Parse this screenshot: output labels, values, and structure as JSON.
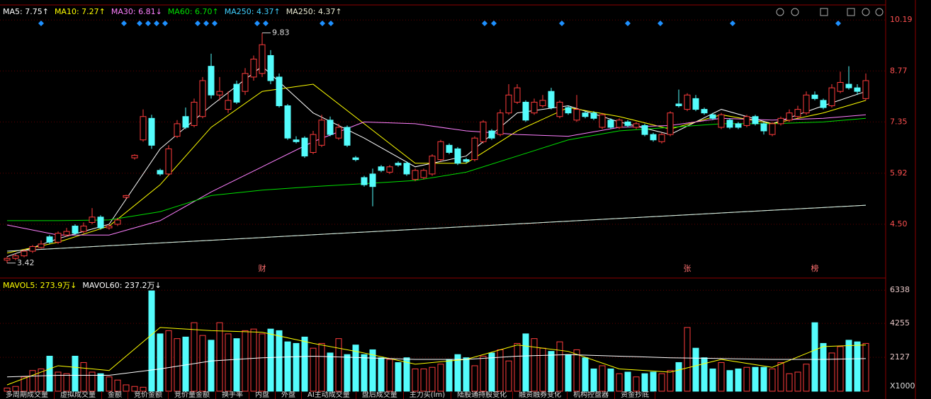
{
  "chart_data": [
    {
      "type": "candlestick",
      "open": [
        3.5,
        3.55,
        3.62,
        3.75,
        3.85,
        4.15,
        4.0,
        4.2,
        4.45,
        4.3,
        4.55,
        4.7,
        4.4,
        4.5,
        5.25,
        6.35,
        6.85,
        7.45,
        6.0,
        5.9,
        6.95,
        7.5,
        7.25,
        7.5,
        8.9,
        8.1,
        7.7,
        8.4,
        8.2,
        8.6,
        8.7,
        9.2,
        8.6,
        7.8,
        6.85,
        6.9,
        6.5,
        6.7,
        7.4,
        6.9,
        7.2,
        6.35,
        5.8,
        5.9,
        6.1,
        5.95,
        6.2,
        6.2,
        5.75,
        5.8,
        5.9,
        6.3,
        6.7,
        6.6,
        6.3,
        6.3,
        6.8,
        7.1,
        7.0,
        7.6,
        7.9,
        7.9,
        7.6,
        7.8,
        8.2,
        7.5,
        7.75,
        7.4,
        7.6,
        7.6,
        7.2,
        7.4,
        7.2,
        7.35,
        7.2,
        7.25,
        7.0,
        6.8,
        7.0,
        7.85,
        7.7,
        8.0,
        7.7,
        7.55,
        7.2,
        7.4,
        7.3,
        7.25,
        7.5,
        7.3,
        7.0,
        7.3,
        7.4,
        7.5,
        7.6,
        8.1,
        7.95,
        7.8,
        8.2,
        8.4,
        8.3,
        8.0
      ],
      "close": [
        3.55,
        3.62,
        3.75,
        3.88,
        3.95,
        4.0,
        4.25,
        4.3,
        4.25,
        4.45,
        4.7,
        4.4,
        4.45,
        4.62,
        5.3,
        6.42,
        7.5,
        6.7,
        5.9,
        6.6,
        7.3,
        7.2,
        7.9,
        8.5,
        8.1,
        8.2,
        7.95,
        7.9,
        8.7,
        9.1,
        9.5,
        8.5,
        7.8,
        6.9,
        6.8,
        6.4,
        7.0,
        7.4,
        7.0,
        7.2,
        6.7,
        6.3,
        5.6,
        5.55,
        6.0,
        6.1,
        6.15,
        5.9,
        6.0,
        6.0,
        6.4,
        6.8,
        6.5,
        6.2,
        6.25,
        6.9,
        7.35,
        6.9,
        7.6,
        8.1,
        8.3,
        7.4,
        7.9,
        7.95,
        7.75,
        7.9,
        7.6,
        7.7,
        7.5,
        7.45,
        7.55,
        7.2,
        7.4,
        7.25,
        7.3,
        7.0,
        6.85,
        7.0,
        7.6,
        7.8,
        8.1,
        7.7,
        7.6,
        7.45,
        7.55,
        7.2,
        7.2,
        7.5,
        7.3,
        7.1,
        7.3,
        7.45,
        7.6,
        7.7,
        8.1,
        8.0,
        7.75,
        8.3,
        8.45,
        8.3,
        8.2,
        8.5
      ],
      "high": [
        3.6,
        3.68,
        3.8,
        3.92,
        4.05,
        4.2,
        4.3,
        4.4,
        4.5,
        4.55,
        4.95,
        4.75,
        4.5,
        4.68,
        5.32,
        6.45,
        7.7,
        7.55,
        6.05,
        6.7,
        7.4,
        7.75,
        8.0,
        8.6,
        9.25,
        8.6,
        8.2,
        8.5,
        8.85,
        9.2,
        9.83,
        9.35,
        8.7,
        7.85,
        6.95,
        6.95,
        7.1,
        7.55,
        7.5,
        7.3,
        7.25,
        6.4,
        5.85,
        6.05,
        6.15,
        6.15,
        6.25,
        6.25,
        6.05,
        6.05,
        6.45,
        6.85,
        6.75,
        6.65,
        6.35,
        6.95,
        7.4,
        7.15,
        7.7,
        8.4,
        8.4,
        7.95,
        8.0,
        8.1,
        8.3,
        7.95,
        7.8,
        8.1,
        7.65,
        7.65,
        7.6,
        7.45,
        7.45,
        7.4,
        7.35,
        7.3,
        7.05,
        7.05,
        7.65,
        8.25,
        8.15,
        8.1,
        7.75,
        7.6,
        7.6,
        7.45,
        7.35,
        7.55,
        7.55,
        7.35,
        7.35,
        7.5,
        7.7,
        7.8,
        8.2,
        8.2,
        8.0,
        8.4,
        8.75,
        8.9,
        8.4,
        8.7
      ],
      "low": [
        3.42,
        3.5,
        3.58,
        3.7,
        3.82,
        3.95,
        3.95,
        4.15,
        4.2,
        4.25,
        4.5,
        4.35,
        4.35,
        4.45,
        5.2,
        6.3,
        6.8,
        6.6,
        5.85,
        5.85,
        6.9,
        7.15,
        7.2,
        7.45,
        8.0,
        7.95,
        7.6,
        7.85,
        8.1,
        8.5,
        8.6,
        8.4,
        7.75,
        6.85,
        6.75,
        6.35,
        6.45,
        6.65,
        6.95,
        6.85,
        6.65,
        6.25,
        5.55,
        5.0,
        5.95,
        5.9,
        6.1,
        5.85,
        5.7,
        5.75,
        5.85,
        6.25,
        6.45,
        6.15,
        6.2,
        6.25,
        6.75,
        6.85,
        6.95,
        7.55,
        7.85,
        7.35,
        7.55,
        7.75,
        7.7,
        7.45,
        7.55,
        7.35,
        7.45,
        7.4,
        7.15,
        7.15,
        7.15,
        7.2,
        7.15,
        6.95,
        6.8,
        6.75,
        6.95,
        7.75,
        7.65,
        7.65,
        7.55,
        7.4,
        7.15,
        7.15,
        7.15,
        7.2,
        7.25,
        7.0,
        6.95,
        7.25,
        7.35,
        7.45,
        7.55,
        7.95,
        7.7,
        7.75,
        8.15,
        8.25,
        8.1,
        7.95
      ],
      "up_color": "#ff3c3c",
      "down_color": "#54fcfc",
      "events": [
        null,
        null,
        null,
        null,
        null,
        null,
        null,
        null,
        null,
        null,
        null,
        null,
        null,
        null,
        null,
        null,
        null,
        null,
        null,
        null,
        null,
        null,
        null,
        null,
        null,
        null,
        null,
        null,
        null,
        null,
        "财",
        null,
        null,
        null,
        null,
        null,
        null,
        null,
        null,
        null,
        null,
        null,
        null,
        null,
        null,
        null,
        null,
        null,
        null,
        null,
        null,
        null,
        null,
        null,
        null,
        null,
        null,
        null,
        null,
        null,
        null,
        null,
        null,
        null,
        null,
        null,
        null,
        null,
        null,
        null,
        null,
        null,
        null,
        null,
        null,
        null,
        null,
        null,
        null,
        null,
        "张",
        null,
        null,
        null,
        null,
        null,
        null,
        null,
        null,
        null,
        null,
        null,
        null,
        null,
        null,
        "榜",
        null,
        null,
        null,
        null,
        null,
        null
      ],
      "series": [
        {
          "name": "MA5: 7.75↑",
          "color": "#ffffff",
          "x": [
            0,
            6,
            12,
            18,
            24,
            30,
            36,
            42,
            48,
            54,
            60,
            66,
            72,
            78,
            84,
            90,
            96,
            101
          ],
          "values": [
            3.6,
            4.1,
            4.5,
            6.6,
            7.8,
            8.9,
            7.6,
            6.9,
            6.1,
            6.4,
            7.6,
            7.8,
            7.35,
            7.0,
            7.7,
            7.3,
            7.8,
            8.2
          ]
        },
        {
          "name": "MA10: 7.27↑",
          "color": "#ffff00",
          "x": [
            0,
            6,
            12,
            18,
            24,
            30,
            36,
            42,
            48,
            54,
            60,
            66,
            72,
            78,
            84,
            90,
            96,
            101
          ],
          "values": [
            3.7,
            4.0,
            4.45,
            5.6,
            7.2,
            8.2,
            8.4,
            7.3,
            6.2,
            6.2,
            7.1,
            7.75,
            7.5,
            7.15,
            7.55,
            7.3,
            7.6,
            7.95
          ]
        },
        {
          "name": "MA30: 6.81↓",
          "color": "#ff80ff",
          "x": [
            0,
            6,
            12,
            18,
            24,
            30,
            36,
            42,
            48,
            54,
            60,
            66,
            72,
            78,
            84,
            90,
            96,
            101
          ],
          "values": [
            4.48,
            4.2,
            4.2,
            4.6,
            5.4,
            6.1,
            6.8,
            7.35,
            7.3,
            7.1,
            7.0,
            6.95,
            7.2,
            7.25,
            7.45,
            7.4,
            7.45,
            7.55
          ]
        },
        {
          "name": "MA60: 6.70↑",
          "color": "#00e000",
          "x": [
            0,
            6,
            12,
            18,
            24,
            30,
            36,
            42,
            48,
            54,
            60,
            66,
            72,
            78,
            84,
            90,
            96,
            101
          ],
          "values": [
            4.6,
            4.6,
            4.62,
            4.85,
            5.3,
            5.45,
            5.55,
            5.63,
            5.72,
            5.95,
            6.4,
            6.85,
            7.1,
            7.2,
            7.3,
            7.3,
            7.35,
            7.45
          ]
        },
        {
          "name": "MA250: 4.37↑",
          "color": "#40d0ff",
          "x": [
            0,
            101
          ],
          "values": [
            3.75,
            5.03
          ]
        },
        {
          "name": "MA250: 4.37↑",
          "color": "#e8e8d0",
          "x": [
            0,
            101
          ],
          "values": [
            3.75,
            5.03
          ]
        }
      ],
      "ylim": [
        3.16,
        10.47
      ],
      "yticks": [
        10.19,
        8.77,
        7.35,
        5.92,
        {
          "value": 4.5,
          "label": "4.50"
        }
      ],
      "grid": true
    },
    {
      "type": "bar",
      "values": [
        200,
        300,
        900,
        1300,
        1400,
        2200,
        1200,
        1100,
        2200,
        1800,
        1200,
        1100,
        900,
        700,
        400,
        300,
        250,
        6300,
        3600,
        3800,
        3300,
        3400,
        4300,
        3500,
        3200,
        4300,
        3600,
        3300,
        3800,
        3900,
        3600,
        3900,
        3800,
        3100,
        3000,
        3400,
        2700,
        3000,
        2400,
        3300,
        2300,
        2900,
        2300,
        2600,
        2100,
        2000,
        1800,
        2100,
        1400,
        1400,
        1500,
        1700,
        2000,
        2300,
        2100,
        1600,
        2200,
        2400,
        2600,
        1900,
        3000,
        3600,
        3300,
        2700,
        2500,
        3100,
        2300,
        2600,
        2100,
        1400,
        1600,
        1400,
        1100,
        1200,
        900,
        1100,
        1200,
        1100,
        1300,
        1800,
        4000,
        2700,
        2100,
        1400,
        1800,
        1300,
        1400,
        1500,
        1500,
        1500,
        1400,
        1800,
        1100,
        1200,
        1700,
        4300,
        3000,
        2400,
        2800,
        3200,
        3100,
        3000
      ],
      "series": [
        {
          "name": "MAVOL5: 273.9万↓",
          "color": "#ffff00",
          "x": [
            0,
            6,
            12,
            18,
            24,
            30,
            36,
            42,
            48,
            54,
            60,
            66,
            72,
            78,
            84,
            90,
            96,
            101
          ],
          "values": [
            400,
            1600,
            1300,
            4000,
            3800,
            3700,
            3000,
            2400,
            1700,
            2000,
            2900,
            2500,
            1400,
            1200,
            2000,
            1500,
            2800,
            2900
          ]
        },
        {
          "name": "MAVOL60: 237.2万↓",
          "color": "#ffffff",
          "x": [
            0,
            6,
            12,
            18,
            24,
            30,
            36,
            42,
            48,
            54,
            60,
            66,
            72,
            78,
            84,
            90,
            96,
            101
          ],
          "values": [
            900,
            1000,
            1000,
            1400,
            1900,
            2100,
            2200,
            2100,
            2000,
            2000,
            2200,
            2300,
            2200,
            2100,
            2050,
            2000,
            2000,
            2050
          ]
        }
      ],
      "ylim": [
        0,
        6570
      ],
      "yticks": [
        6338,
        4255,
        2127
      ],
      "y_unit": "X1000",
      "grid": true
    }
  ],
  "tabs": [
    "多周期成交量",
    "虚拟成交量",
    "金额",
    "竞价金额",
    "竞价量金额",
    "换手率",
    "内盘",
    "外盘",
    "AI主动成交量",
    "盘后成交量",
    "主力买(lm)",
    "陆股通持股变化",
    "融资融券变化",
    "机构控盘器",
    "资金抄底"
  ]
}
